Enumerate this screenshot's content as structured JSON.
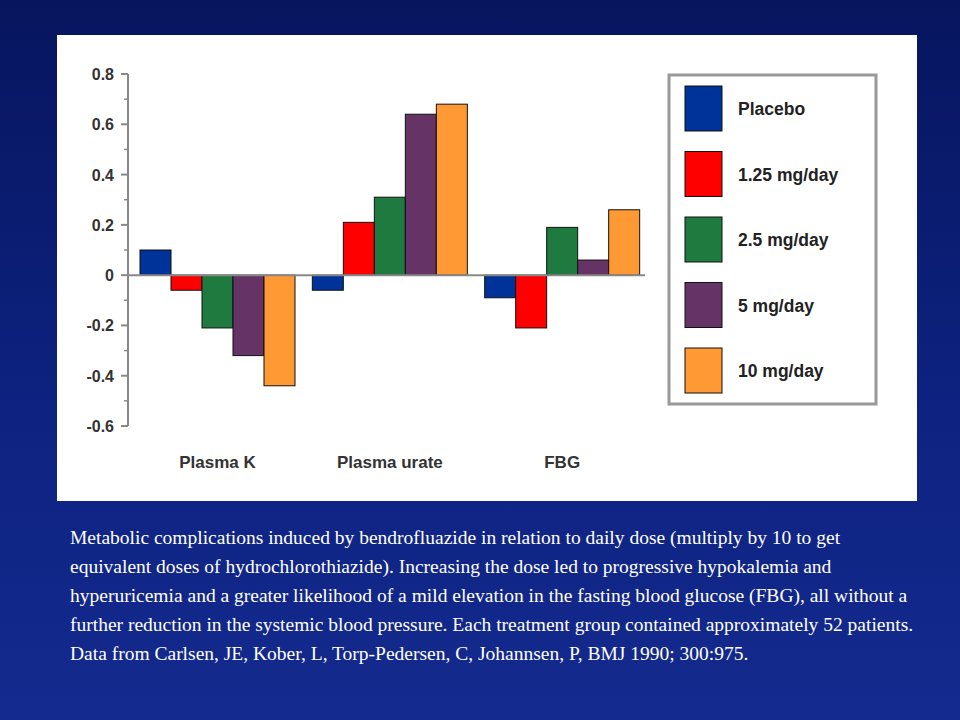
{
  "chart_data": {
    "type": "bar",
    "categories": [
      "Plasma K",
      "Plasma urate",
      "FBG"
    ],
    "series": [
      {
        "name": "Placebo",
        "color": "#003399",
        "values": [
          0.1,
          -0.06,
          -0.09
        ]
      },
      {
        "name": "1.25 mg/day",
        "color": "#ff0000",
        "values": [
          -0.06,
          0.21,
          -0.21
        ]
      },
      {
        "name": "2.5 mg/day",
        "color": "#1f7a3f",
        "values": [
          -0.21,
          0.31,
          0.19
        ]
      },
      {
        "name": "5 mg/day",
        "color": "#663366",
        "values": [
          -0.32,
          0.64,
          0.06
        ]
      },
      {
        "name": "10 mg/day",
        "color": "#ff9933",
        "values": [
          -0.44,
          0.68,
          0.26
        ]
      }
    ],
    "ylim": [
      -0.6,
      0.8
    ],
    "yticks": [
      -0.6,
      -0.4,
      -0.2,
      0,
      0.2,
      0.4,
      0.6,
      0.8
    ],
    "legend": "right",
    "grid": false,
    "caption": "Metabolic complications induced by bendrofluazide in relation to daily dose (multiply by 10 to get equivalent doses of hydrochlorothiazide). Increasing the dose led to progressive hypokalemia and hyperuricemia and a greater likelihood of a mild elevation in the fasting blood glucose (FBG), all without a further reduction in the systemic blood pressure. Each treatment group contained approximately 52 patients. Data from Carlsen, JE, Kober, L, Torp-Pedersen, C, Johannsen, P, BMJ 1990; 300:975."
  }
}
